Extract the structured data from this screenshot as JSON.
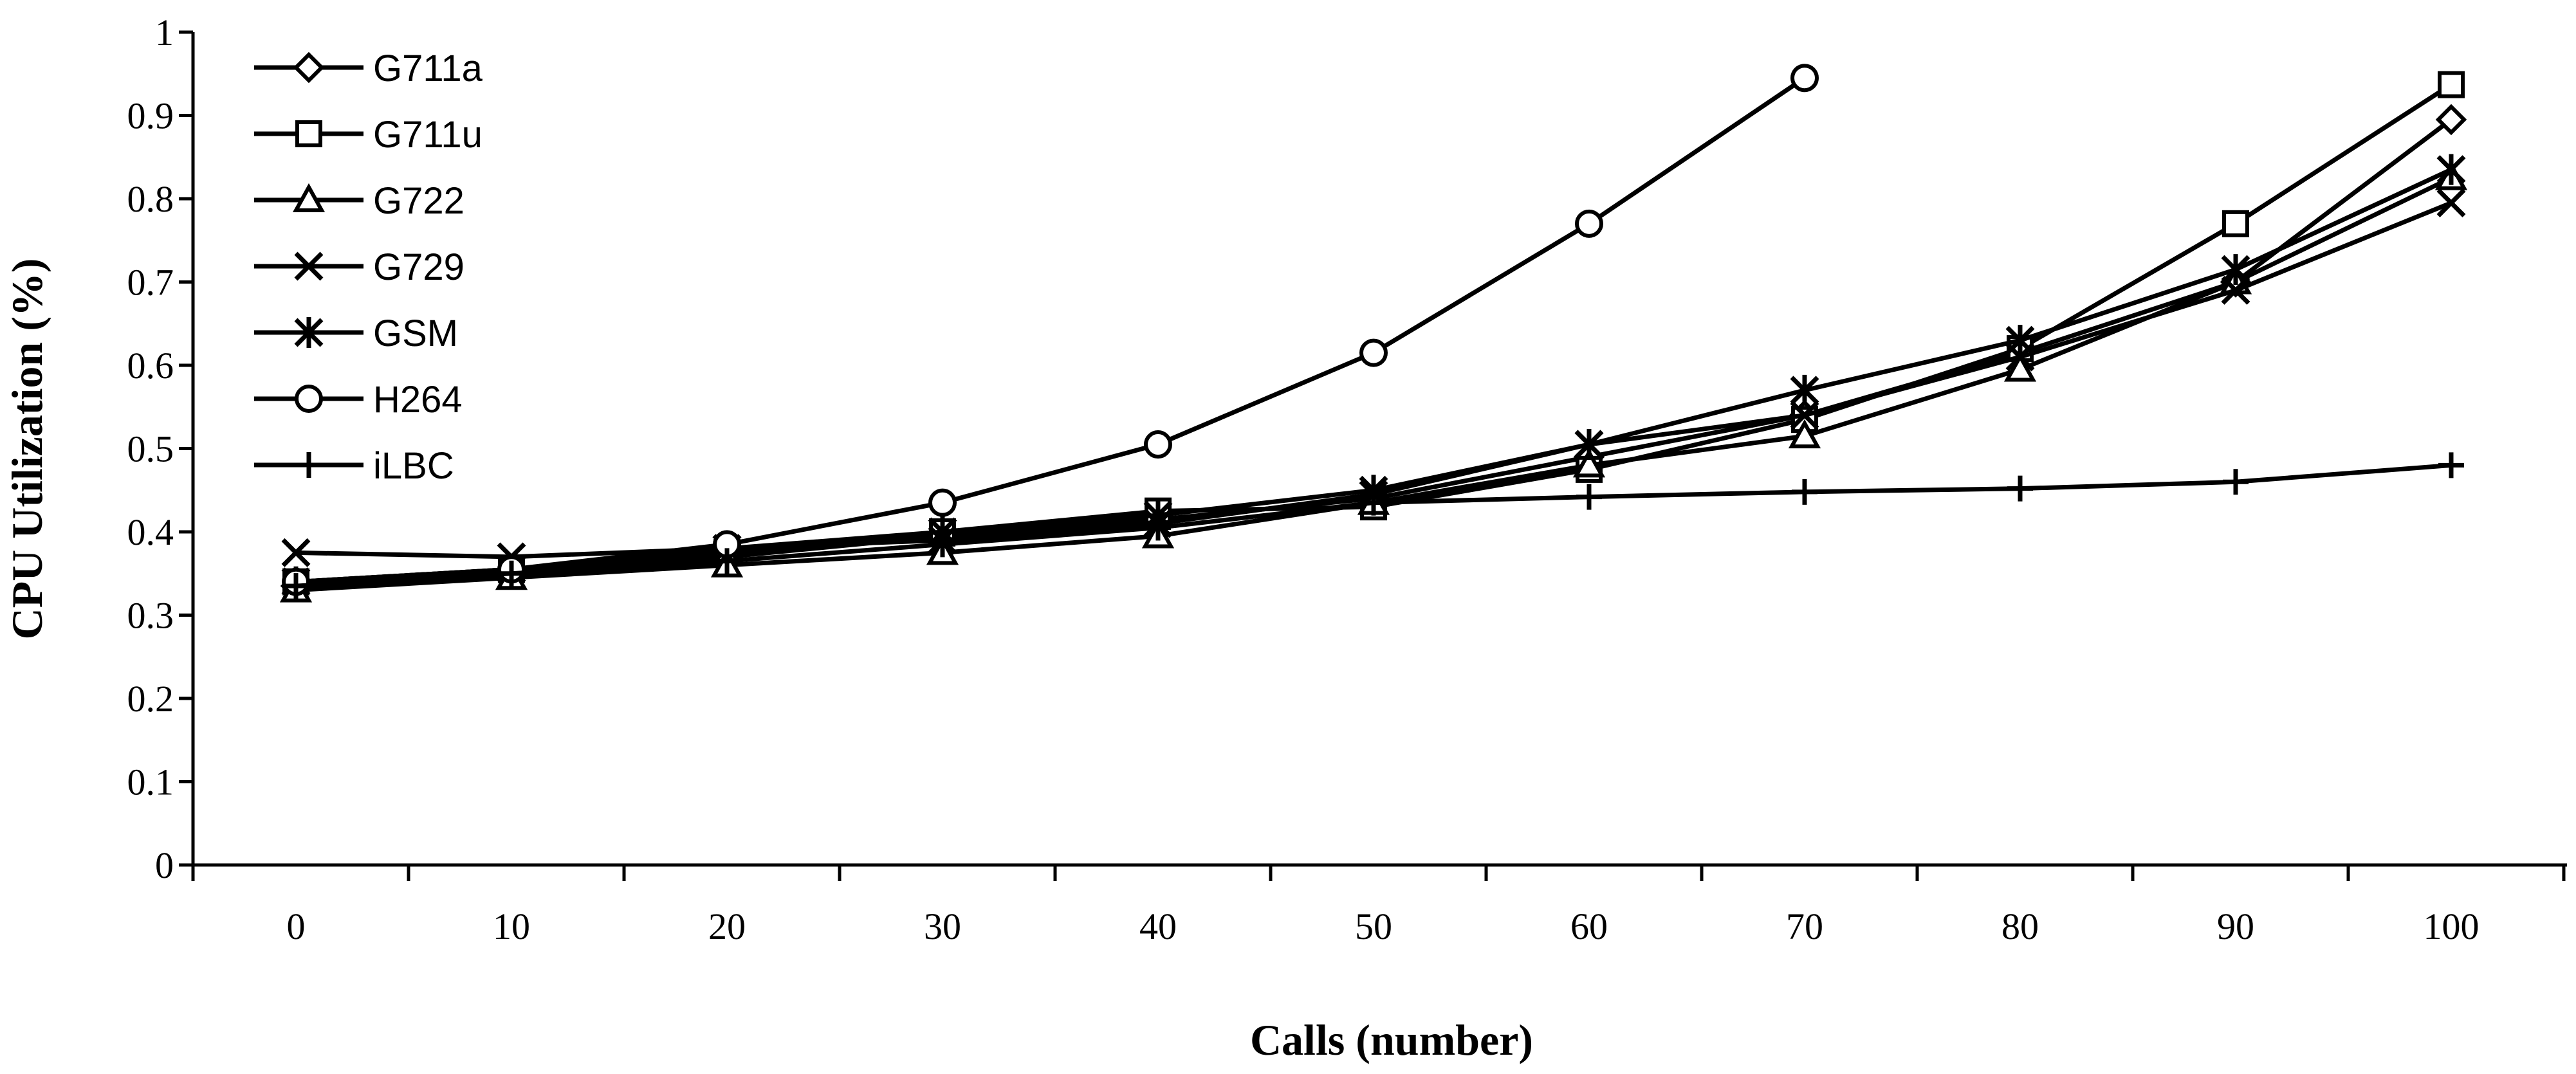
{
  "chart_data": {
    "type": "line",
    "xlabel": "Calls (number)",
    "ylabel": "CPU Utilization (%)",
    "x": [
      0,
      10,
      20,
      30,
      40,
      50,
      60,
      70,
      80,
      90,
      100
    ],
    "ylim": [
      0,
      1
    ],
    "yticks": [
      "0",
      "0.1",
      "0.2",
      "0.3",
      "0.4",
      "0.5",
      "0.6",
      "0.7",
      "0.8",
      "0.9",
      "1"
    ],
    "xticks": [
      "0",
      "10",
      "20",
      "30",
      "40",
      "50",
      "60",
      "70",
      "80",
      "90",
      "100"
    ],
    "grid": false,
    "legend_position": "top-left",
    "series": [
      {
        "name": "G711a",
        "marker": "diamond",
        "values": [
          0.335,
          0.35,
          0.37,
          0.395,
          0.415,
          0.44,
          0.49,
          0.54,
          0.615,
          0.7,
          0.895
        ]
      },
      {
        "name": "G711u",
        "marker": "square",
        "values": [
          0.34,
          0.355,
          0.375,
          0.4,
          0.425,
          0.43,
          0.475,
          0.535,
          0.62,
          0.77,
          0.937
        ]
      },
      {
        "name": "G722",
        "marker": "triangle",
        "values": [
          0.33,
          0.345,
          0.36,
          0.375,
          0.395,
          0.435,
          0.48,
          0.515,
          0.595,
          0.7,
          0.825
        ]
      },
      {
        "name": "G729",
        "marker": "x",
        "values": [
          0.375,
          0.37,
          0.38,
          0.39,
          0.41,
          0.445,
          0.505,
          0.54,
          0.61,
          0.69,
          0.795
        ]
      },
      {
        "name": "GSM",
        "marker": "asterisk",
        "values": [
          0.34,
          0.355,
          0.38,
          0.4,
          0.42,
          0.45,
          0.505,
          0.57,
          0.63,
          0.715,
          0.835
        ]
      },
      {
        "name": "H264",
        "marker": "circle",
        "values": [
          0.34,
          0.355,
          0.385,
          0.435,
          0.505,
          0.615,
          0.77,
          0.945,
          null,
          null,
          null
        ]
      },
      {
        "name": "iLBC",
        "marker": "plus",
        "values": [
          0.335,
          0.35,
          0.365,
          0.385,
          0.405,
          0.435,
          0.442,
          0.448,
          0.452,
          0.46,
          0.48
        ]
      }
    ]
  }
}
